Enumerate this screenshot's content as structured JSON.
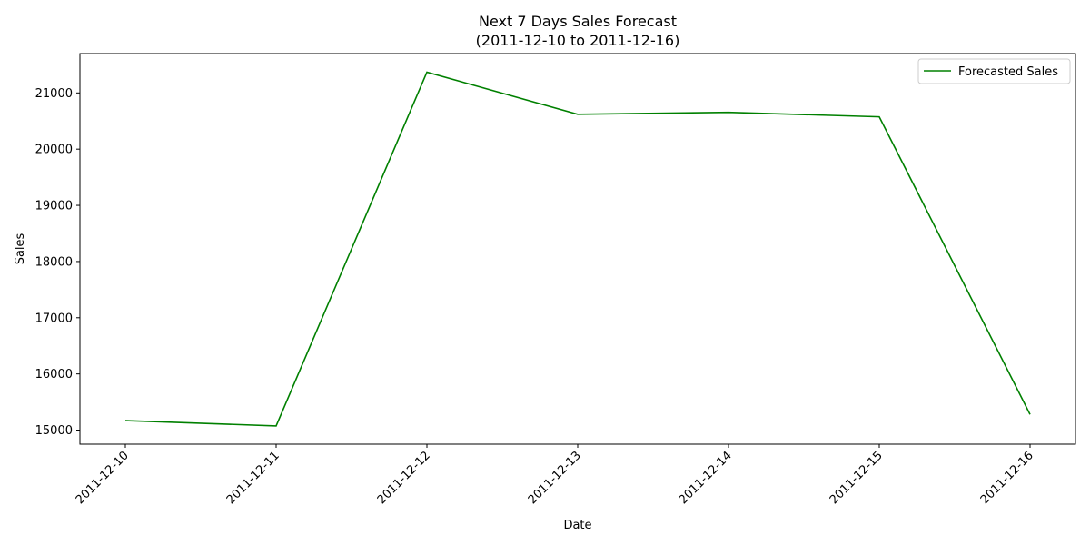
{
  "chart_data": {
    "type": "line",
    "title": "Next 7 Days Sales Forecast",
    "subtitle": "(2011-12-10 to 2011-12-16)",
    "xlabel": "Date",
    "ylabel": "Sales",
    "categories": [
      "2011-12-10",
      "2011-12-11",
      "2011-12-12",
      "2011-12-13",
      "2011-12-14",
      "2011-12-15",
      "2011-12-16"
    ],
    "yticks": [
      15000,
      16000,
      17000,
      18000,
      19000,
      20000,
      21000
    ],
    "ylim": [
      14750,
      21700
    ],
    "grid": false,
    "legend_position": "top-right",
    "series": [
      {
        "name": "Forecasted Sales",
        "color": "#008000",
        "values": [
          15170,
          15075,
          21370,
          20620,
          20655,
          20575,
          15280
        ]
      }
    ]
  }
}
